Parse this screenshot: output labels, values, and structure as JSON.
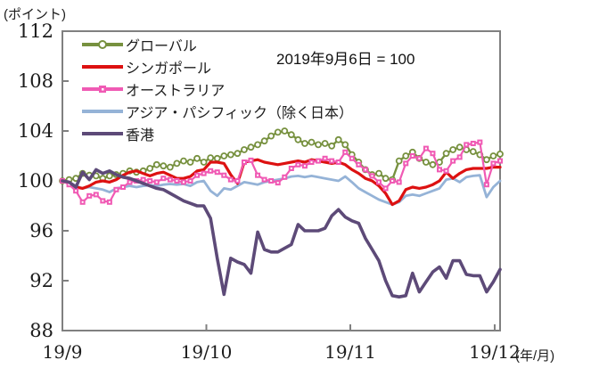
{
  "chart_data": {
    "type": "line",
    "annotation": "2019年9月6日 = 100",
    "y_axis_unit": "(ポイント)",
    "x_axis_unit": "(年/月)",
    "grid": false,
    "legend_position": "top-left-inside",
    "y_range": [
      88,
      112
    ],
    "y_ticks": [
      112,
      108,
      104,
      100,
      96,
      92,
      88
    ],
    "x_ticks": [
      {
        "label": "19/9",
        "pos": 0
      },
      {
        "label": "19/10",
        "pos": 21.38
      },
      {
        "label": "19/11",
        "pos": 42.76
      },
      {
        "label": "19/12",
        "pos": 64.2
      }
    ],
    "axis_color": "#808080",
    "series": [
      {
        "name": "グローバル",
        "color": "#77913f",
        "marker": "circle",
        "line_width": 2.4,
        "values": [
          100.0,
          100.1,
          100.2,
          100.6,
          100.45,
          100.4,
          100.2,
          100.4,
          100.5,
          100.6,
          100.8,
          100.7,
          100.8,
          101.0,
          101.3,
          101.2,
          101.1,
          101.4,
          101.6,
          101.5,
          101.8,
          101.5,
          101.85,
          101.8,
          102.0,
          102.1,
          102.2,
          102.5,
          102.7,
          102.9,
          103.2,
          103.6,
          103.9,
          104.0,
          103.7,
          103.3,
          103.0,
          103.1,
          102.9,
          103.0,
          102.8,
          103.3,
          102.9,
          102.1,
          101.5,
          100.9,
          100.5,
          100.6,
          100.2,
          100.1,
          101.6,
          102.0,
          102.3,
          101.8,
          101.5,
          101.3,
          101.5,
          102.2,
          102.5,
          102.7,
          102.5,
          102.35,
          102.1,
          101.7,
          102.0,
          102.15
        ]
      },
      {
        "name": "シンガポール",
        "color": "#dd1111",
        "marker": "none",
        "line_width": 3.2,
        "values": [
          100.0,
          99.9,
          99.5,
          99.4,
          99.6,
          99.9,
          100.0,
          99.9,
          100.1,
          100.45,
          100.7,
          100.8,
          100.6,
          100.4,
          100.6,
          100.7,
          100.45,
          100.2,
          100.2,
          100.35,
          100.8,
          100.9,
          101.5,
          101.5,
          101.4,
          100.5,
          99.8,
          101.5,
          101.6,
          101.7,
          101.5,
          101.4,
          101.3,
          101.4,
          101.5,
          101.6,
          101.5,
          101.7,
          101.6,
          101.5,
          101.4,
          101.5,
          101.3,
          100.9,
          100.6,
          100.2,
          100.0,
          99.6,
          99.0,
          98.1,
          98.4,
          99.3,
          99.5,
          99.4,
          99.5,
          99.7,
          100.0,
          100.7,
          100.2,
          100.6,
          100.9,
          101.0,
          101.0,
          101.0,
          101.1,
          101.1
        ]
      },
      {
        "name": "オーストラリア",
        "color": "#f05ab4",
        "marker": "square",
        "line_width": 2.2,
        "values": [
          100.0,
          99.7,
          99.2,
          98.3,
          98.8,
          98.9,
          98.4,
          98.3,
          99.3,
          99.5,
          99.9,
          100.0,
          100.1,
          100.0,
          99.9,
          100.2,
          100.1,
          100.0,
          99.9,
          100.0,
          100.45,
          100.6,
          100.8,
          100.7,
          100.45,
          100.1,
          100.0,
          101.5,
          101.65,
          100.45,
          100.1,
          100.0,
          99.85,
          100.3,
          101.0,
          101.3,
          101.2,
          101.5,
          101.6,
          101.8,
          101.6,
          101.5,
          102.3,
          101.8,
          101.3,
          100.9,
          100.4,
          99.9,
          99.4,
          100.0,
          99.9,
          101.4,
          102.0,
          101.8,
          102.6,
          102.2,
          100.9,
          100.8,
          101.6,
          101.9,
          102.9,
          103.0,
          103.1,
          99.7,
          101.4,
          101.6
        ]
      },
      {
        "name": "アジア・パシフィック（除く日本）",
        "color": "#95b3d7",
        "marker": "none",
        "line_width": 2.8,
        "values": [
          100.0,
          99.9,
          99.6,
          99.4,
          99.5,
          99.4,
          99.3,
          99.1,
          99.4,
          99.5,
          99.6,
          99.5,
          99.6,
          99.65,
          99.6,
          99.7,
          99.75,
          99.7,
          99.75,
          99.6,
          99.9,
          100.0,
          99.2,
          98.8,
          99.4,
          99.3,
          99.6,
          99.9,
          99.8,
          99.7,
          99.9,
          100.0,
          100.1,
          100.2,
          100.35,
          100.4,
          100.3,
          100.4,
          100.3,
          100.2,
          100.1,
          100.0,
          100.35,
          99.9,
          99.4,
          99.1,
          98.8,
          98.5,
          98.3,
          98.1,
          98.3,
          98.8,
          98.9,
          98.8,
          99.0,
          99.2,
          99.4,
          100.1,
          100.2,
          99.9,
          100.3,
          100.4,
          100.45,
          98.7,
          99.5,
          100.0
        ]
      },
      {
        "name": "香港",
        "color": "#5d4a78",
        "marker": "none",
        "line_width": 3.6,
        "values": [
          100.0,
          99.9,
          99.5,
          100.7,
          100.1,
          100.9,
          100.6,
          100.8,
          100.5,
          100.3,
          100.2,
          100.0,
          99.8,
          99.6,
          99.4,
          99.3,
          99.0,
          98.7,
          98.4,
          98.2,
          98.0,
          98.0,
          97.0,
          93.8,
          90.9,
          93.8,
          93.5,
          93.3,
          92.6,
          95.9,
          94.5,
          94.3,
          94.3,
          94.6,
          94.9,
          96.5,
          96.0,
          96.0,
          96.0,
          96.2,
          97.2,
          97.7,
          97.1,
          96.8,
          96.6,
          95.4,
          94.5,
          93.6,
          92.0,
          90.8,
          90.7,
          90.8,
          92.6,
          91.1,
          91.9,
          92.7,
          93.1,
          92.2,
          93.6,
          93.6,
          92.5,
          92.4,
          92.4,
          91.1,
          91.9,
          92.9
        ]
      }
    ]
  }
}
